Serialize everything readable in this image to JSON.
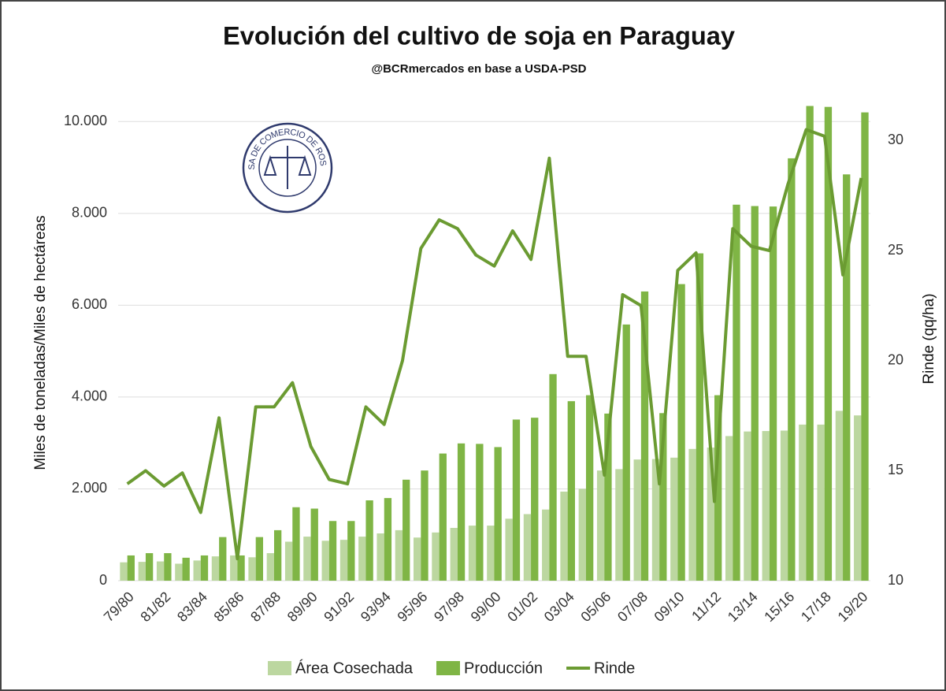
{
  "chart_data": {
    "type": "bar-line",
    "title": "Evolución del cultivo de soja en Paraguay",
    "subtitle": "@BCRmercados en base a USDA-PSD",
    "logo_text": "BOLSA DE COMERCIO DE ROSARIO",
    "ylabel": "Miles de toneladas/Miles de hectáreas",
    "y2label": "Rinde (qq/ha)",
    "categories": [
      "79/80",
      null,
      "81/82",
      null,
      "83/84",
      null,
      "85/86",
      null,
      "87/88",
      null,
      "89/90",
      null,
      "91/92",
      null,
      "93/94",
      null,
      "95/96",
      null,
      "97/98",
      null,
      "99/00",
      null,
      "01/02",
      null,
      "03/04",
      null,
      "05/06",
      null,
      "07/08",
      null,
      "09/10",
      null,
      "11/12",
      null,
      "13/14",
      null,
      "15/16",
      null,
      "17/18",
      null,
      "19/20"
    ],
    "series": [
      {
        "name": "Área Cosechada",
        "type": "bar",
        "color": "#bcd7a0",
        "values": [
          400,
          410,
          420,
          370,
          440,
          530,
          550,
          510,
          600,
          850,
          960,
          870,
          890,
          960,
          1030,
          1100,
          940,
          1050,
          1150,
          1200,
          1200,
          1350,
          1450,
          1550,
          1940,
          2000,
          2400,
          2430,
          2640,
          2650,
          2680,
          2870,
          2900,
          3150,
          3250,
          3260,
          3270,
          3400,
          3400,
          3700,
          3600
        ]
      },
      {
        "name": "Producción",
        "type": "bar",
        "color": "#7fb545",
        "values": [
          550,
          600,
          600,
          500,
          550,
          950,
          550,
          950,
          1100,
          1600,
          1570,
          1300,
          1300,
          1750,
          1800,
          2200,
          2400,
          2770,
          2990,
          2980,
          2910,
          3510,
          3550,
          4500,
          3910,
          4040,
          3640,
          5580,
          6300,
          3650,
          6460,
          7130,
          4040,
          8190,
          8160,
          8150,
          9200,
          10340,
          10320,
          8850,
          10200
        ]
      },
      {
        "name": "Rinde",
        "type": "line",
        "axis": "y2",
        "color": "#6b9b32",
        "values": [
          14.4,
          15.0,
          14.3,
          14.9,
          13.1,
          17.4,
          11.0,
          17.9,
          17.9,
          19.0,
          16.1,
          14.6,
          14.4,
          17.9,
          17.1,
          20.0,
          25.1,
          26.4,
          26.0,
          24.8,
          24.3,
          25.9,
          24.6,
          29.2,
          20.2,
          20.2,
          14.8,
          23.0,
          22.5,
          14.4,
          24.1,
          24.9,
          13.6,
          26.0,
          25.2,
          25.0,
          28.0,
          30.5,
          30.2,
          23.9,
          28.3
        ]
      }
    ],
    "ylim": [
      0,
      10400
    ],
    "yticks": [
      0,
      {
        "value": 2000,
        "label": "2.000"
      },
      {
        "value": 4000,
        "label": "4.000"
      },
      {
        "value": 6000,
        "label": "6.000"
      },
      {
        "value": 8000,
        "label": "8.000"
      },
      {
        "value": 10000,
        "label": "10.000"
      }
    ],
    "y2lim": [
      10,
      31.7
    ],
    "y2ticks": [
      10,
      15,
      20,
      25,
      30
    ],
    "grid": true,
    "legend": "bottom"
  }
}
